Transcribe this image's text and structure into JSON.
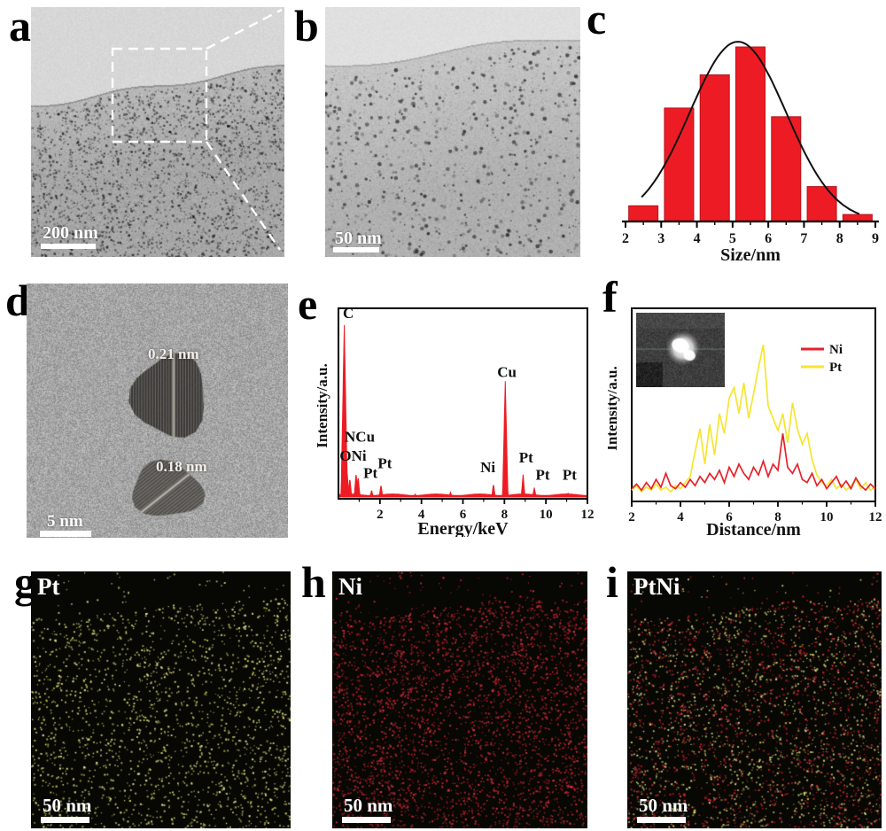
{
  "panels": {
    "a": {
      "letter": "a",
      "scale_bar": "200 nm"
    },
    "b": {
      "letter": "b",
      "scale_bar": "50 nm"
    },
    "c": {
      "letter": "c"
    },
    "d": {
      "letter": "d",
      "scale_bar": "5 nm",
      "lattice_1": "0.21 nm",
      "lattice_2": "0.18 nm"
    },
    "e": {
      "letter": "e"
    },
    "f": {
      "letter": "f"
    },
    "g": {
      "letter": "g",
      "element": "Pt",
      "scale_bar": "50 nm"
    },
    "h": {
      "letter": "h",
      "element": "Ni",
      "scale_bar": "50 nm"
    },
    "i": {
      "letter": "i",
      "element": "PtNi",
      "scale_bar": "50 nm"
    }
  },
  "colors": {
    "accent_red": "#ed1c24",
    "curve_black": "#111111",
    "pt_line_yellow": "#f5e62e",
    "ni_line_red": "#e8212b",
    "pt_dot": "#dde07c",
    "ni_dot": "#cf2a32",
    "map_background": "#070703"
  },
  "chart_data": [
    {
      "id": "c",
      "type": "bar",
      "title": "",
      "xlabel": "Size/nm",
      "ylabel": "",
      "xlim": [
        2,
        9
      ],
      "x_ticks": [
        2,
        3,
        4,
        5,
        6,
        7,
        8,
        9
      ],
      "bin_centers": [
        2.5,
        3.5,
        4.5,
        5.5,
        6.5,
        7.5,
        8.5
      ],
      "values": [
        0.09,
        0.65,
        0.84,
        1.0,
        0.6,
        0.2,
        0.04
      ],
      "bar_color": "#ed1c24",
      "grid": false,
      "fit_curve": {
        "type": "gaussian",
        "center": 5.15,
        "sigma": 1.35,
        "amplitude": 1.03,
        "range": [
          2.45,
          8.58
        ],
        "color": "#111111"
      }
    },
    {
      "id": "e",
      "type": "area",
      "title": "",
      "xlabel": "Energy/keV",
      "ylabel": "Intensity/a.u.",
      "xlim": [
        0,
        12
      ],
      "x_ticks": [
        2,
        4,
        6,
        8,
        10,
        12
      ],
      "color": "#ed1c24",
      "grid": false,
      "peaks": [
        {
          "x": 0.28,
          "h": 0.92
        },
        {
          "x": 0.42,
          "h": 0.13
        },
        {
          "x": 0.55,
          "h": 0.1
        },
        {
          "x": 0.85,
          "h": 0.13
        },
        {
          "x": 0.95,
          "h": 0.11
        },
        {
          "x": 1.6,
          "h": 0.035
        },
        {
          "x": 2.05,
          "h": 0.065
        },
        {
          "x": 3.7,
          "h": 0.015
        },
        {
          "x": 5.4,
          "h": 0.025
        },
        {
          "x": 6.4,
          "h": 0.012
        },
        {
          "x": 7.47,
          "h": 0.07
        },
        {
          "x": 8.04,
          "h": 0.62
        },
        {
          "x": 8.9,
          "h": 0.12
        },
        {
          "x": 9.44,
          "h": 0.05
        },
        {
          "x": 11.07,
          "h": 0.022
        }
      ],
      "peak_labels": [
        {
          "text": "C",
          "fx": 0.018,
          "fy": 0.05
        },
        {
          "text": "NCu",
          "fx": 0.025,
          "fy": 0.7
        },
        {
          "text": "ONi",
          "fx": 0.005,
          "fy": 0.8
        },
        {
          "text": "Pt",
          "fx": 0.1,
          "fy": 0.89
        },
        {
          "text": "Pt",
          "fx": 0.158,
          "fy": 0.84
        },
        {
          "text": "Ni",
          "fx": 0.57,
          "fy": 0.86
        },
        {
          "text": "Cu",
          "fx": 0.638,
          "fy": 0.36
        },
        {
          "text": "Pt",
          "fx": 0.725,
          "fy": 0.81
        },
        {
          "text": "Pt",
          "fx": 0.792,
          "fy": 0.9
        },
        {
          "text": "Pt",
          "fx": 0.9,
          "fy": 0.9
        }
      ]
    },
    {
      "id": "f",
      "type": "line",
      "title": "",
      "xlabel": "Distance/nm",
      "ylabel": "Intensity/a.u.",
      "xlim": [
        2,
        12
      ],
      "x_ticks": [
        2,
        4,
        6,
        8,
        10,
        12
      ],
      "x_start": 2,
      "x_step": 0.2,
      "grid": false,
      "legend_position": "top-right",
      "series": [
        {
          "name": "Ni",
          "color": "#e8212b",
          "values": [
            0.06,
            0.09,
            0.05,
            0.1,
            0.06,
            0.12,
            0.07,
            0.16,
            0.08,
            0.06,
            0.1,
            0.07,
            0.12,
            0.08,
            0.14,
            0.1,
            0.16,
            0.12,
            0.18,
            0.1,
            0.2,
            0.14,
            0.22,
            0.16,
            0.12,
            0.2,
            0.15,
            0.24,
            0.14,
            0.22,
            0.18,
            0.42,
            0.2,
            0.16,
            0.22,
            0.12,
            0.1,
            0.16,
            0.08,
            0.12,
            0.06,
            0.1,
            0.14,
            0.07,
            0.11,
            0.06,
            0.13,
            0.08,
            0.05,
            0.09,
            0.06
          ]
        },
        {
          "name": "Pt",
          "color": "#f5e62e",
          "values": [
            0.05,
            0.08,
            0.04,
            0.07,
            0.05,
            0.09,
            0.05,
            0.07,
            0.04,
            0.08,
            0.06,
            0.1,
            0.14,
            0.3,
            0.45,
            0.22,
            0.48,
            0.28,
            0.55,
            0.42,
            0.65,
            0.72,
            0.55,
            0.75,
            0.52,
            0.68,
            0.85,
            1.0,
            0.6,
            0.52,
            0.44,
            0.55,
            0.36,
            0.62,
            0.45,
            0.35,
            0.42,
            0.25,
            0.15,
            0.1,
            0.08,
            0.12,
            0.06,
            0.09,
            0.05,
            0.08,
            0.12,
            0.06,
            0.1,
            0.05,
            0.07
          ]
        }
      ]
    }
  ]
}
